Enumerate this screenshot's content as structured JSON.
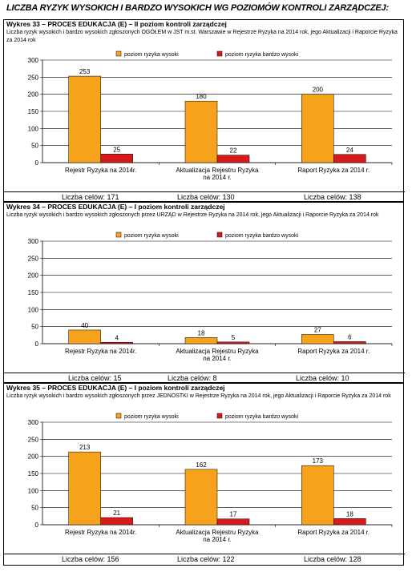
{
  "page_title": "LICZBA RYZYK WYSOKICH I BARDZO WYSOKICH  WG POZIOMÓW KONTROLI ZARZĄDCZEJ:",
  "colors": {
    "series1": "#f7a21b",
    "series2": "#d91a1a"
  },
  "chart_data": [
    {
      "type": "bar",
      "title": "Wykres 33 – PROCES EDUKACJA (E) – II poziom kontroli zarządczej",
      "subtitle": "Liczba ryzyk wysokich i bardzo wysokich zgłoszonych OGÓŁEM w JST m.st. Warszawie w Rejestrze Ryzyka na 2014 rok, jego Aktualizacji i Raporcie Ryzyka za 2014 rok",
      "legend": [
        "poziom ryzyka wysoki",
        "poziom ryzyka bardzo wysoki"
      ],
      "legend_position": "top-center",
      "categories": [
        [
          "Rejestr Ryzyka na 2014r."
        ],
        [
          "Aktualizacja Rejestru Ryzyka",
          "na 2014 r."
        ],
        [
          "Raport Ryzyka za 2014 r."
        ]
      ],
      "series": [
        {
          "name": "poziom ryzyka wysoki",
          "values": [
            253,
            180,
            200
          ]
        },
        {
          "name": "poziom ryzyka bardzo wysoki",
          "values": [
            25,
            22,
            24
          ]
        }
      ],
      "ylim": [
        0,
        300
      ],
      "yticks": [
        "0",
        "50",
        "100",
        "150",
        "200",
        "250",
        "300"
      ],
      "grid": true,
      "footer": [
        "Liczba celów: 171",
        "Liczba celów: 130",
        "Liczba celów: 138"
      ]
    },
    {
      "type": "bar",
      "title": "Wykres 34 – PROCES EDUKACJA (E) – I poziom kontroli zarządczej",
      "subtitle": "Liczba ryzyk wysokich i bardzo wysokich zgłoszonych przez URZĄD w Rejestrze Ryzyka na 2014 rok, jego Aktualizacji i Raporcie Ryzyka za 2014 rok",
      "legend": [
        "poziom ryzyka wysoki",
        "poziom ryzyka bardzo wysoki"
      ],
      "legend_position": "top-center",
      "categories": [
        [
          "Rejestr Ryzyka na 2014r."
        ],
        [
          "Aktualizacja Rejestru Ryzyka",
          "na 2014 r."
        ],
        [
          "Raport Ryzyka za 2014 r."
        ]
      ],
      "series": [
        {
          "name": "poziom ryzyka wysoki",
          "values": [
            40,
            18,
            27
          ]
        },
        {
          "name": "poziom ryzyka bardzo wysoki",
          "values": [
            4,
            5,
            6
          ]
        }
      ],
      "ylim": [
        0,
        300
      ],
      "yticks": [
        "0",
        "50",
        "100",
        "150",
        "200",
        "250",
        "300"
      ],
      "grid": true,
      "footer": [
        "Liczba celów: 15",
        "Liczba celów: 8",
        "Liczba celów: 10"
      ]
    },
    {
      "type": "bar",
      "title": "Wykres 35 – PROCES EDUKACJA (E) – I poziom kontroli zarządczej",
      "subtitle": "Liczba ryzyk wysokich i bardzo wysokich zgłoszonych przez JEDNOSTKI w Rejestrze Ryzyka na 2014 rok, jego Aktualizacji i Raporcie Ryzyka za 2014 rok",
      "legend": [
        "poziom ryzyka wysoki",
        "poziom ryzyka bardzo wysoki"
      ],
      "legend_position": "top-center",
      "categories": [
        [
          "Rejestr Ryzyka na 2014r."
        ],
        [
          "Aktualizacja Rejestru Ryzyka",
          "na 2014 r."
        ],
        [
          "Raport Ryzyka za 2014 r."
        ]
      ],
      "series": [
        {
          "name": "poziom ryzyka wysoki",
          "values": [
            213,
            162,
            173
          ]
        },
        {
          "name": "poziom ryzyka bardzo wysoki",
          "values": [
            21,
            17,
            18
          ]
        }
      ],
      "ylim": [
        0,
        300
      ],
      "yticks": [
        "0",
        "50",
        "100",
        "150",
        "200",
        "250",
        "300"
      ],
      "grid": true,
      "footer": [
        "Liczba celów: 156",
        "Liczba celów: 122",
        "Liczba celów: 128"
      ]
    }
  ]
}
